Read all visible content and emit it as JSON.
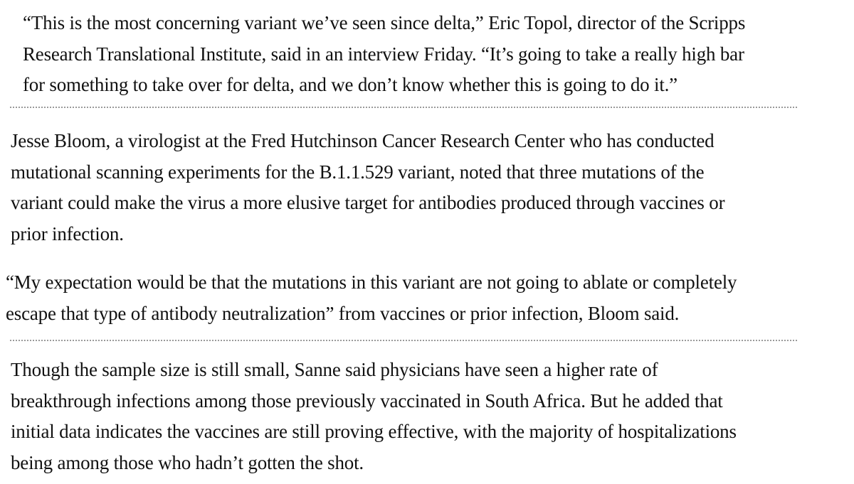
{
  "article": {
    "paragraphs": [
      {
        "lines": [
          "“This is the most concerning variant we’ve seen since delta,” Eric Topol, director of the Scripps",
          "Research Translational Institute, said in an interview Friday. “It’s going to take a really high bar",
          "for something to take over for delta, and we don’t know whether this is going to do it.”"
        ]
      },
      {
        "lines": [
          "Jesse Bloom, a virologist at the Fred Hutchinson Cancer Research Center who has conducted",
          "mutational scanning experiments for the B.1.1.529 variant, noted that three mutations of the",
          "variant could make the virus a more elusive target for antibodies produced through vaccines or",
          "prior infection."
        ]
      },
      {
        "lines": [
          "“My expectation would be that the mutations in this variant are not going to ablate or completely",
          "escape that type of antibody neutralization” from vaccines or prior infection, Bloom said."
        ]
      },
      {
        "lines": [
          "Though the sample size is still small, Sanne said physicians have seen a higher rate of",
          "breakthrough infections among those previously vaccinated in South Africa. But he added that",
          "initial data indicates the vaccines are still proving effective, with the majority of hospitalizations",
          "being among those who hadn’t gotten the shot."
        ]
      }
    ]
  }
}
